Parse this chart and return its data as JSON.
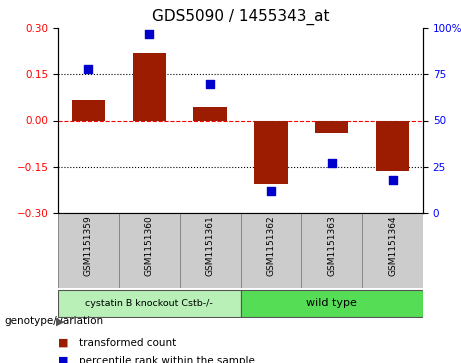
{
  "title": "GDS5090 / 1455343_at",
  "samples": [
    "GSM1151359",
    "GSM1151360",
    "GSM1151361",
    "GSM1151362",
    "GSM1151363",
    "GSM1151364"
  ],
  "bar_values": [
    0.065,
    0.22,
    0.045,
    -0.205,
    -0.04,
    -0.165
  ],
  "percentile_values": [
    78,
    97,
    70,
    12,
    27,
    18
  ],
  "ylim_left": [
    -0.3,
    0.3
  ],
  "ylim_right": [
    0,
    100
  ],
  "yticks_left": [
    -0.3,
    -0.15,
    0,
    0.15,
    0.3
  ],
  "yticks_right": [
    0,
    25,
    50,
    75,
    100
  ],
  "hlines": [
    0.15,
    -0.15
  ],
  "bar_color": "#9B1C00",
  "dot_color": "#0000CC",
  "background_color": "#ffffff",
  "group1_label": "cystatin B knockout Cstb-/-",
  "group2_label": "wild type",
  "group1_indices": [
    0,
    1,
    2
  ],
  "group2_indices": [
    3,
    4,
    5
  ],
  "group1_color": "#b8f0b8",
  "group2_color": "#55dd55",
  "sample_box_color": "#cccccc",
  "sample_box_edge": "#888888",
  "genotype_label": "genotype/variation",
  "legend_bar_label": "transformed count",
  "legend_dot_label": "percentile rank within the sample",
  "bar_width": 0.55,
  "dot_size": 40,
  "title_fontsize": 11,
  "tick_fontsize": 7.5,
  "sample_fontsize": 6.5,
  "legend_fontsize": 7.5
}
